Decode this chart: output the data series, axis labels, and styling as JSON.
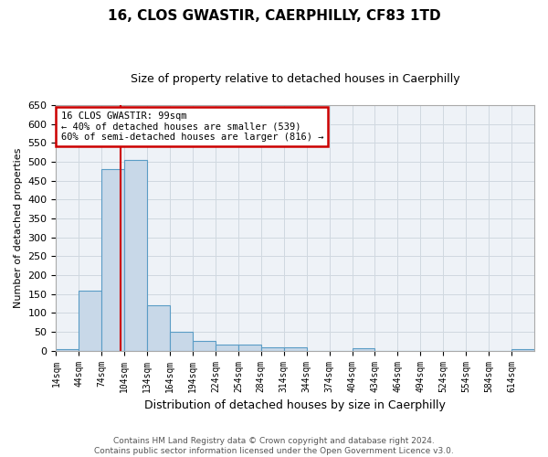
{
  "title": "16, CLOS GWASTIR, CAERPHILLY, CF83 1TD",
  "subtitle": "Size of property relative to detached houses in Caerphilly",
  "xlabel": "Distribution of detached houses by size in Caerphilly",
  "ylabel": "Number of detached properties",
  "bin_edges": [
    14,
    44,
    74,
    104,
    134,
    164,
    194,
    224,
    254,
    284,
    314,
    344,
    374,
    404,
    434,
    464,
    494,
    524,
    554,
    584,
    614,
    644
  ],
  "bar_heights": [
    5,
    160,
    480,
    505,
    120,
    50,
    25,
    15,
    15,
    10,
    8,
    0,
    0,
    6,
    0,
    0,
    0,
    0,
    0,
    0,
    5
  ],
  "bar_color": "#c8d8e8",
  "bar_edge_color": "#5a9cc5",
  "property_size": 99,
  "vline_color": "#cc0000",
  "ylim": [
    0,
    650
  ],
  "yticks": [
    0,
    50,
    100,
    150,
    200,
    250,
    300,
    350,
    400,
    450,
    500,
    550,
    600,
    650
  ],
  "annotation_line1": "16 CLOS GWASTIR: 99sqm",
  "annotation_line2": "← 40% of detached houses are smaller (539)",
  "annotation_line3": "60% of semi-detached houses are larger (816) →",
  "annotation_box_color": "#ffffff",
  "annotation_box_edge": "#cc0000",
  "footer_line1": "Contains HM Land Registry data © Crown copyright and database right 2024.",
  "footer_line2": "Contains public sector information licensed under the Open Government Licence v3.0.",
  "grid_color": "#d0d8e0",
  "background_color": "#eef2f7",
  "title_fontsize": 11,
  "subtitle_fontsize": 9,
  "xlabel_fontsize": 9,
  "ylabel_fontsize": 8,
  "annotation_fontsize": 7.5,
  "footer_fontsize": 6.5
}
